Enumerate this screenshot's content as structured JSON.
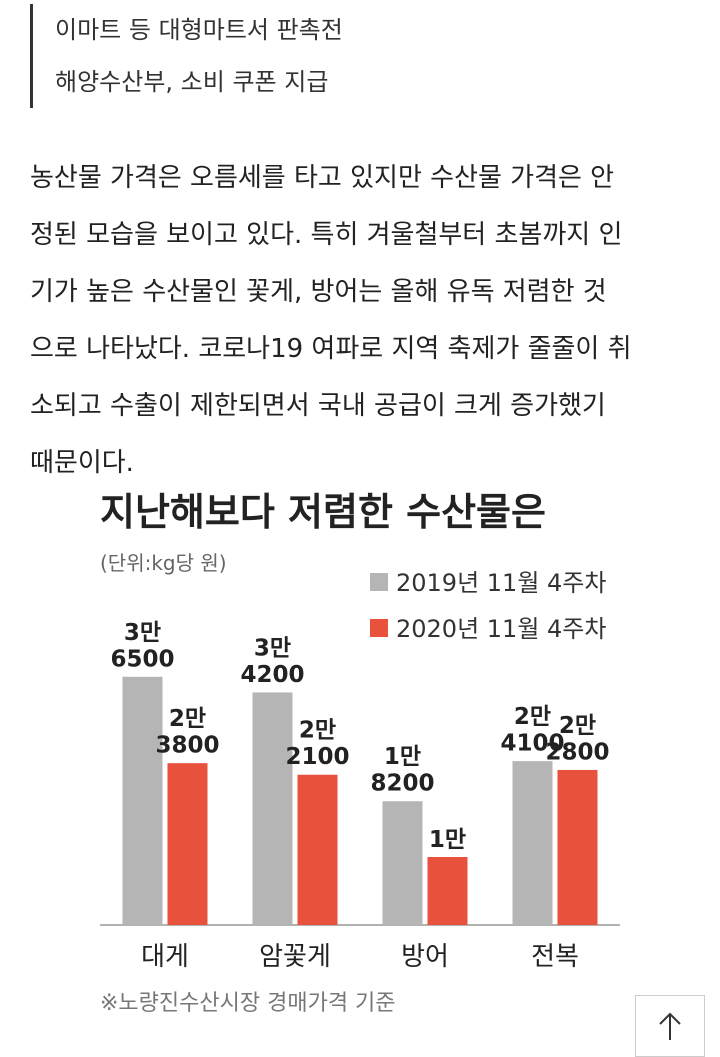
{
  "subheadline": {
    "lines": [
      "이마트 등 대형마트서 판촉전",
      "해양수산부, 소비 쿠폰 지급"
    ]
  },
  "body": {
    "lines": [
      "농산물 가격은 오름세를 타고 있지만 수산물 가격은 안",
      "정된 모습을 보이고 있다. 특히 겨울철부터 초봄까지 인",
      "기가 높은 수산물인 꽃게, 방어는 올해 유독 저렴한 것",
      "으로 나타났다. 코로나19 여파로 지역 축제가 줄줄이 취",
      "소되고 수출이 제한되면서 국내 공급이 크게 증가했기",
      "때문이다."
    ]
  },
  "chart_data": {
    "type": "bar",
    "title": "지난해보다 저렴한 수산물은",
    "subtitle": "(단위:kg당 원)",
    "categories": [
      "대게",
      "암꽃게",
      "방어",
      "전복"
    ],
    "series": [
      {
        "name": "2019년 11월 4주차",
        "color": "#b5b5b5",
        "values": [
          36500,
          34200,
          18200,
          24100
        ],
        "value_labels": [
          "3만\n6500",
          "3만\n4200",
          "1만\n8200",
          "2만\n4100"
        ]
      },
      {
        "name": "2020년 11월 4주차",
        "color": "#e8513b",
        "values": [
          23800,
          22100,
          10000,
          22800
        ],
        "value_labels": [
          "2만\n3800",
          "2만\n2100",
          "1만",
          "2만\n2800"
        ]
      }
    ],
    "ylim": [
      0,
      40000
    ],
    "note": "※노량진수산시장 경매가격 기준"
  }
}
